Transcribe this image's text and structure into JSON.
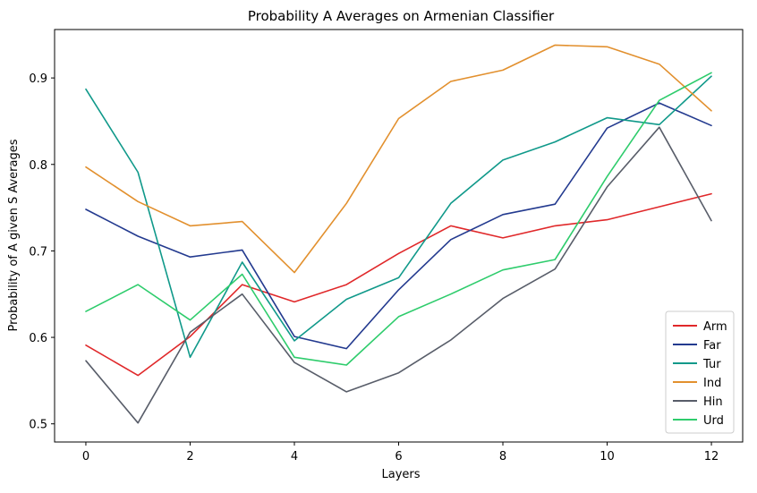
{
  "chart_data": {
    "type": "line",
    "title": "Probability A Averages on Armenian Classifier",
    "xlabel": "Layers",
    "ylabel": "Probability of A given S Averages",
    "x": [
      0,
      1,
      2,
      3,
      4,
      5,
      6,
      7,
      8,
      9,
      10,
      11,
      12
    ],
    "xlim": [
      -0.6,
      12.6
    ],
    "ylim": [
      0.479,
      0.956
    ],
    "xticks": [
      0,
      2,
      4,
      6,
      8,
      10,
      12
    ],
    "yticks": [
      0.5,
      0.6,
      0.7,
      0.8,
      0.9
    ],
    "grid": false,
    "legend_position": "lower right",
    "series": [
      {
        "name": "Arm",
        "color": "#e0282a",
        "values": [
          0.591,
          0.556,
          0.601,
          0.661,
          0.641,
          0.661,
          0.697,
          0.729,
          0.715,
          0.729,
          0.736,
          0.751,
          0.766
        ]
      },
      {
        "name": "Far",
        "color": "#233a8f",
        "values": [
          0.748,
          0.717,
          0.693,
          0.701,
          0.601,
          0.587,
          0.655,
          0.713,
          0.742,
          0.754,
          0.842,
          0.871,
          0.845
        ]
      },
      {
        "name": "Tur",
        "color": "#10998a",
        "values": [
          0.887,
          0.791,
          0.577,
          0.687,
          0.596,
          0.644,
          0.669,
          0.755,
          0.805,
          0.826,
          0.854,
          0.846,
          0.902
        ]
      },
      {
        "name": "Ind",
        "color": "#e2902e",
        "values": [
          0.797,
          0.757,
          0.729,
          0.734,
          0.675,
          0.755,
          0.853,
          0.896,
          0.909,
          0.938,
          0.936,
          0.916,
          0.862
        ]
      },
      {
        "name": "Hin",
        "color": "#585d69",
        "values": [
          0.573,
          0.501,
          0.606,
          0.65,
          0.571,
          0.537,
          0.559,
          0.597,
          0.645,
          0.679,
          0.774,
          0.843,
          0.735
        ]
      },
      {
        "name": "Urd",
        "color": "#2ecc6c",
        "values": [
          0.63,
          0.661,
          0.62,
          0.673,
          0.577,
          0.568,
          0.624,
          0.65,
          0.678,
          0.69,
          0.786,
          0.874,
          0.906
        ]
      }
    ]
  }
}
